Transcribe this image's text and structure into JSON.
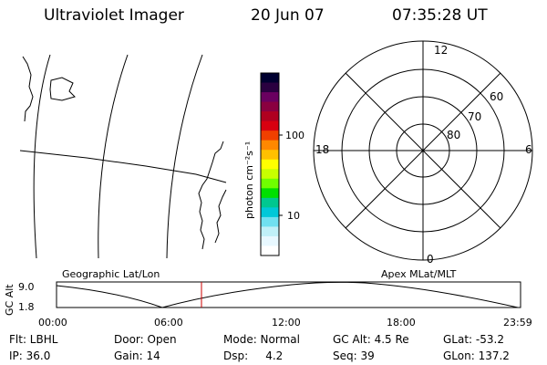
{
  "header": {
    "title": "Ultraviolet Imager",
    "date": "20 Jun 07",
    "time": "07:35:28 UT"
  },
  "colorbar": {
    "unit_label": "photon cm⁻²s⁻¹",
    "ticks": [
      "100",
      "10"
    ],
    "colors": [
      "#000030",
      "#2a0040",
      "#6a0060",
      "#8a0040",
      "#b00020",
      "#d80010",
      "#f04000",
      "#ff8800",
      "#ffc000",
      "#ffff00",
      "#c8ff00",
      "#70ff00",
      "#00e000",
      "#00c890",
      "#00c8d8",
      "#70e0f0",
      "#c0f0f8",
      "#e8f8ff",
      "#ffffff"
    ]
  },
  "polar": {
    "mlt_labels": {
      "top": "12",
      "right": "6",
      "bottom": "0",
      "left": "18"
    },
    "lat_labels": [
      "60",
      "70",
      "80"
    ]
  },
  "timeline": {
    "left_title": "Geographic Lat/Lon",
    "right_title": "Apex MLat/MLT",
    "y_label": "GC Alt",
    "y_ticks": [
      "9.0",
      "1.8"
    ],
    "x_ticks": [
      "00:00",
      "06:00",
      "12:00",
      "18:00",
      "23:59"
    ],
    "current_time_color": "#cc0000"
  },
  "info": {
    "row1": [
      "Flt: LBHL",
      "Door: Open",
      "Mode: Normal",
      "GC Alt: 4.5 Re",
      "GLat: -53.2"
    ],
    "row2": [
      "IP: 36.0",
      "Gain: 14",
      "Dsp:     4.2",
      "Seq: 39",
      "GLon: 137.2"
    ]
  }
}
